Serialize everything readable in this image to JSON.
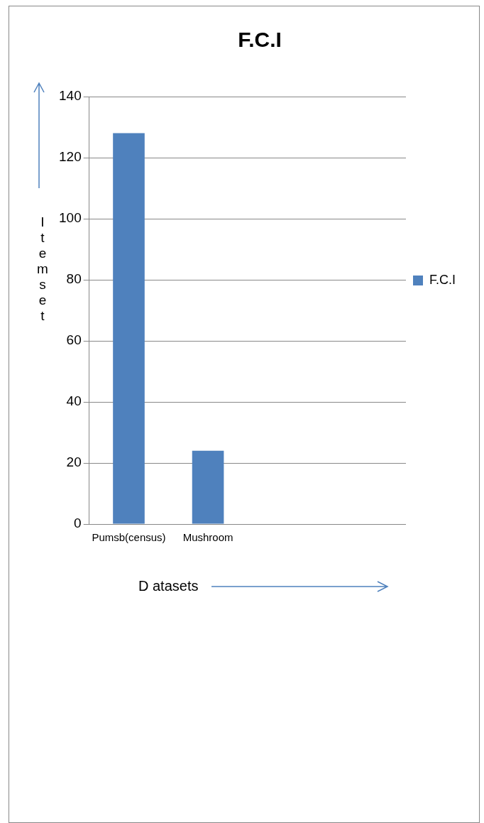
{
  "chart_data": {
    "type": "bar",
    "title": "F.C.I",
    "xlabel": "D atasets",
    "ylabel": "Itemset",
    "categories": [
      "Pumsb(census)",
      "Mushroom",
      null,
      null
    ],
    "series": [
      {
        "name": "F.C.I",
        "color": "#4f81bd",
        "values": [
          128,
          24,
          null,
          null
        ]
      }
    ],
    "ylim": [
      0,
      140
    ],
    "yticks": [
      0,
      20,
      40,
      60,
      80,
      100,
      120,
      140
    ],
    "grid": "y",
    "legend": "right"
  }
}
